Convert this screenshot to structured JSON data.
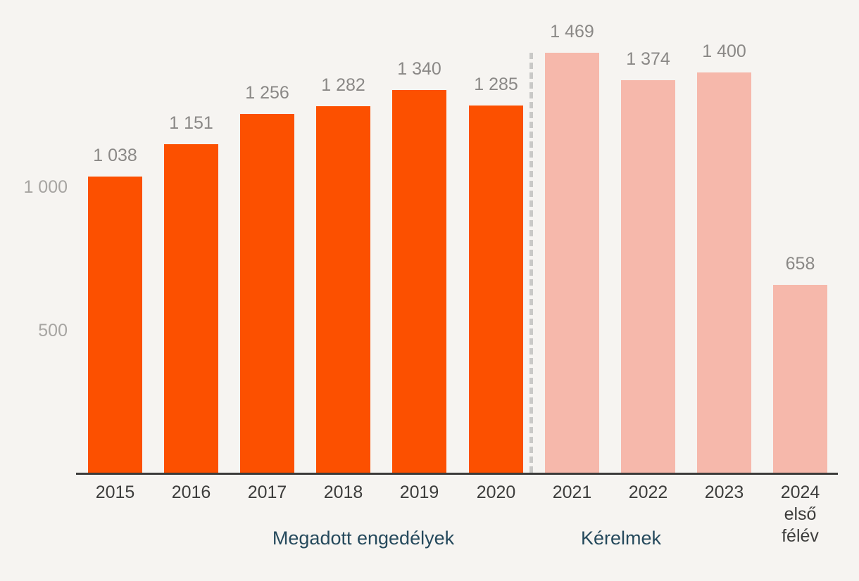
{
  "chart_data": {
    "type": "bar",
    "title": "",
    "categories": [
      [
        "2015"
      ],
      [
        "2016"
      ],
      [
        "2017"
      ],
      [
        "2018"
      ],
      [
        "2019"
      ],
      [
        "2020"
      ],
      [
        "2021"
      ],
      [
        "2022"
      ],
      [
        "2023"
      ],
      [
        "2024",
        "első",
        "félév"
      ]
    ],
    "series": [
      {
        "name": "Megadott engedélyek",
        "color": "#fc5000",
        "values": [
          1038,
          1151,
          1256,
          1282,
          1340,
          1285,
          null,
          null,
          null,
          null
        ]
      },
      {
        "name": "Kérelmek",
        "color": "#f6b8ab",
        "values": [
          null,
          null,
          null,
          null,
          null,
          null,
          1469,
          1374,
          1400,
          658
        ]
      }
    ],
    "value_labels": [
      "1 038",
      "1 151",
      "1 256",
      "1 282",
      "1 340",
      "1 285",
      "1 469",
      "1 374",
      "1 400",
      "658"
    ],
    "y_axis": {
      "ticks": [
        {
          "value": 500,
          "label": "500"
        },
        {
          "value": 1000,
          "label": "1 000"
        }
      ],
      "range": [
        0,
        1650
      ],
      "grid": false
    },
    "divider": {
      "type": "dashed-vertical-line",
      "between_categories": [
        "2020",
        "2021"
      ],
      "color": "#c9c9c7"
    },
    "legend": {
      "position": "bottom",
      "entries": [
        {
          "label": "Megadott engedélyek",
          "color": "#fc5000"
        },
        {
          "label": "Kérelmek",
          "color": "#f6b8ab"
        }
      ]
    }
  },
  "colors": {
    "background": "#f6f4f1",
    "bar_granted": "#fc5000",
    "bar_requests": "#f6b8ab",
    "value_label": "#8a8886",
    "y_tick_label": "#a7a5a2",
    "x_tick_label": "#3d3d3c",
    "legend_label": "#25495c",
    "axis_line": "#3b3b3a",
    "divider_line": "#c9c9c7"
  }
}
